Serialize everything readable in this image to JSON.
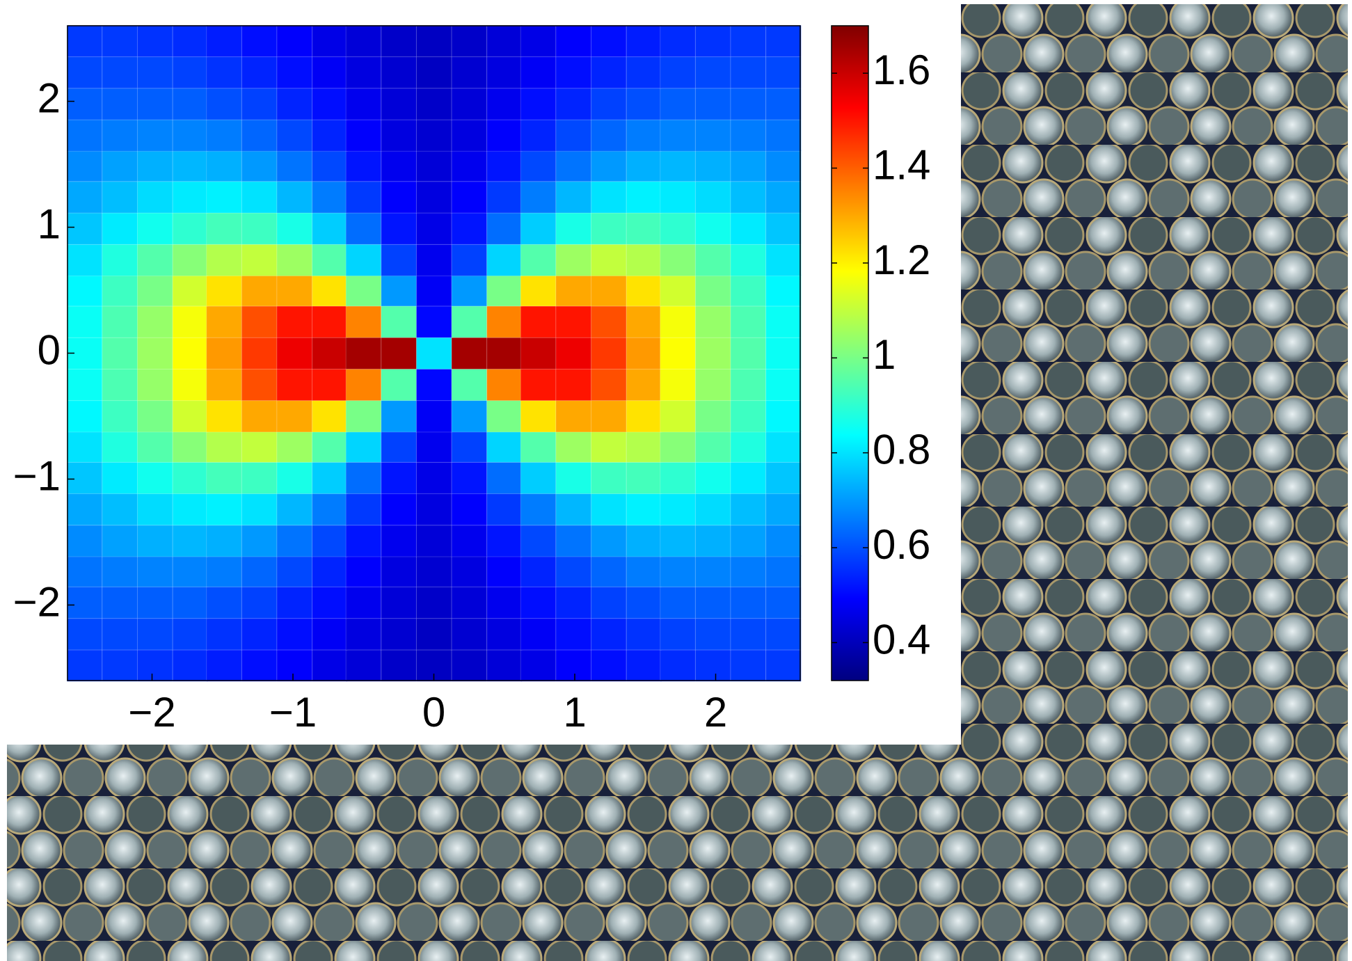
{
  "chart_data": {
    "type": "heatmap",
    "x": [
      -2.48,
      -2.23,
      -1.98,
      -1.73,
      -1.49,
      -1.24,
      -0.99,
      -0.74,
      -0.5,
      -0.25,
      0,
      0.25,
      0.5,
      0.74,
      0.99,
      1.24,
      1.49,
      1.73,
      1.98,
      2.23,
      2.48
    ],
    "y": [
      -2.48,
      -2.23,
      -1.98,
      -1.73,
      -1.49,
      -1.24,
      -0.99,
      -0.74,
      -0.5,
      -0.25,
      0,
      0.25,
      0.5,
      0.74,
      0.99,
      1.24,
      1.49,
      1.73,
      1.98,
      2.23,
      2.48
    ],
    "z": [
      [
        0.57,
        0.57,
        0.56,
        0.55,
        0.53,
        0.51,
        0.49,
        0.46,
        0.44,
        0.42,
        0.41,
        0.42,
        0.44,
        0.46,
        0.49,
        0.51,
        0.53,
        0.55,
        0.56,
        0.57,
        0.57
      ],
      [
        0.59,
        0.59,
        0.59,
        0.58,
        0.56,
        0.54,
        0.51,
        0.48,
        0.45,
        0.43,
        0.41,
        0.43,
        0.45,
        0.48,
        0.51,
        0.54,
        0.56,
        0.58,
        0.59,
        0.59,
        0.59
      ],
      [
        0.62,
        0.62,
        0.62,
        0.62,
        0.6,
        0.58,
        0.54,
        0.51,
        0.47,
        0.44,
        0.42,
        0.44,
        0.47,
        0.51,
        0.54,
        0.58,
        0.6,
        0.62,
        0.62,
        0.62,
        0.62
      ],
      [
        0.65,
        0.66,
        0.67,
        0.67,
        0.66,
        0.63,
        0.59,
        0.54,
        0.49,
        0.45,
        0.43,
        0.45,
        0.49,
        0.54,
        0.59,
        0.63,
        0.66,
        0.67,
        0.67,
        0.66,
        0.65
      ],
      [
        0.68,
        0.71,
        0.73,
        0.74,
        0.73,
        0.7,
        0.65,
        0.59,
        0.52,
        0.47,
        0.44,
        0.47,
        0.52,
        0.59,
        0.65,
        0.7,
        0.73,
        0.74,
        0.73,
        0.71,
        0.68
      ],
      [
        0.72,
        0.75,
        0.79,
        0.81,
        0.82,
        0.8,
        0.74,
        0.66,
        0.57,
        0.49,
        0.45,
        0.49,
        0.57,
        0.66,
        0.74,
        0.8,
        0.82,
        0.81,
        0.79,
        0.75,
        0.72
      ],
      [
        0.76,
        0.81,
        0.86,
        0.9,
        0.93,
        0.92,
        0.87,
        0.77,
        0.64,
        0.52,
        0.46,
        0.52,
        0.64,
        0.77,
        0.87,
        0.92,
        0.93,
        0.9,
        0.86,
        0.81,
        0.76
      ],
      [
        0.8,
        0.88,
        0.95,
        1.02,
        1.08,
        1.1,
        1.05,
        0.95,
        0.78,
        0.58,
        0.47,
        0.58,
        0.78,
        0.95,
        1.05,
        1.1,
        1.08,
        1.02,
        0.95,
        0.88,
        0.8
      ],
      [
        0.83,
        0.92,
        1.0,
        1.12,
        1.22,
        1.3,
        1.3,
        1.22,
        1.0,
        0.7,
        0.48,
        0.7,
        1.0,
        1.22,
        1.3,
        1.3,
        1.22,
        1.12,
        1.0,
        0.92,
        0.83
      ],
      [
        0.85,
        0.94,
        1.04,
        1.17,
        1.3,
        1.42,
        1.5,
        1.5,
        1.35,
        0.95,
        0.5,
        0.95,
        1.35,
        1.5,
        1.5,
        1.42,
        1.3,
        1.17,
        1.04,
        0.94,
        0.85
      ],
      [
        0.85,
        0.95,
        1.05,
        1.18,
        1.32,
        1.45,
        1.55,
        1.6,
        1.65,
        1.65,
        0.8,
        1.65,
        1.65,
        1.6,
        1.55,
        1.45,
        1.32,
        1.18,
        1.05,
        0.95,
        0.85
      ],
      [
        0.85,
        0.94,
        1.04,
        1.17,
        1.3,
        1.42,
        1.5,
        1.5,
        1.35,
        0.95,
        0.5,
        0.95,
        1.35,
        1.5,
        1.5,
        1.42,
        1.3,
        1.17,
        1.04,
        0.94,
        0.85
      ],
      [
        0.83,
        0.92,
        1.0,
        1.12,
        1.22,
        1.3,
        1.3,
        1.22,
        1.0,
        0.7,
        0.48,
        0.7,
        1.0,
        1.22,
        1.3,
        1.3,
        1.22,
        1.12,
        1.0,
        0.92,
        0.83
      ],
      [
        0.8,
        0.88,
        0.95,
        1.02,
        1.08,
        1.1,
        1.05,
        0.95,
        0.78,
        0.58,
        0.47,
        0.58,
        0.78,
        0.95,
        1.05,
        1.1,
        1.08,
        1.02,
        0.95,
        0.88,
        0.8
      ],
      [
        0.76,
        0.81,
        0.86,
        0.9,
        0.93,
        0.92,
        0.87,
        0.77,
        0.64,
        0.52,
        0.46,
        0.52,
        0.64,
        0.77,
        0.87,
        0.92,
        0.93,
        0.9,
        0.86,
        0.81,
        0.76
      ],
      [
        0.72,
        0.75,
        0.79,
        0.81,
        0.82,
        0.8,
        0.74,
        0.66,
        0.57,
        0.49,
        0.45,
        0.49,
        0.57,
        0.66,
        0.74,
        0.8,
        0.82,
        0.81,
        0.79,
        0.75,
        0.72
      ],
      [
        0.68,
        0.71,
        0.73,
        0.74,
        0.73,
        0.7,
        0.65,
        0.59,
        0.52,
        0.47,
        0.44,
        0.47,
        0.52,
        0.59,
        0.65,
        0.7,
        0.73,
        0.74,
        0.73,
        0.71,
        0.68
      ],
      [
        0.65,
        0.66,
        0.67,
        0.67,
        0.66,
        0.63,
        0.59,
        0.54,
        0.49,
        0.45,
        0.43,
        0.45,
        0.49,
        0.54,
        0.59,
        0.63,
        0.66,
        0.67,
        0.67,
        0.66,
        0.65
      ],
      [
        0.62,
        0.62,
        0.62,
        0.62,
        0.6,
        0.58,
        0.54,
        0.51,
        0.47,
        0.44,
        0.42,
        0.44,
        0.47,
        0.51,
        0.54,
        0.58,
        0.6,
        0.62,
        0.62,
        0.62,
        0.62
      ],
      [
        0.59,
        0.59,
        0.59,
        0.58,
        0.56,
        0.54,
        0.51,
        0.48,
        0.45,
        0.43,
        0.41,
        0.43,
        0.45,
        0.48,
        0.51,
        0.54,
        0.56,
        0.58,
        0.59,
        0.59,
        0.59
      ],
      [
        0.57,
        0.57,
        0.56,
        0.55,
        0.53,
        0.51,
        0.49,
        0.46,
        0.44,
        0.42,
        0.41,
        0.42,
        0.44,
        0.46,
        0.49,
        0.51,
        0.53,
        0.55,
        0.56,
        0.57,
        0.57
      ]
    ],
    "xlim": [
      -2.6,
      2.6
    ],
    "ylim": [
      -2.6,
      2.6
    ],
    "xticks": [
      {
        "value": -2,
        "label": "−2"
      },
      {
        "value": -1,
        "label": "−1"
      },
      0,
      1,
      2
    ],
    "yticks": [
      {
        "value": -2,
        "label": "−2"
      },
      {
        "value": -1,
        "label": "−1"
      },
      0,
      1,
      2
    ],
    "colormap": "jet",
    "clim": [
      0.32,
      1.7
    ],
    "cticks": [
      0.4,
      0.6,
      0.8,
      1,
      1.2,
      1.4,
      1.6
    ]
  }
}
